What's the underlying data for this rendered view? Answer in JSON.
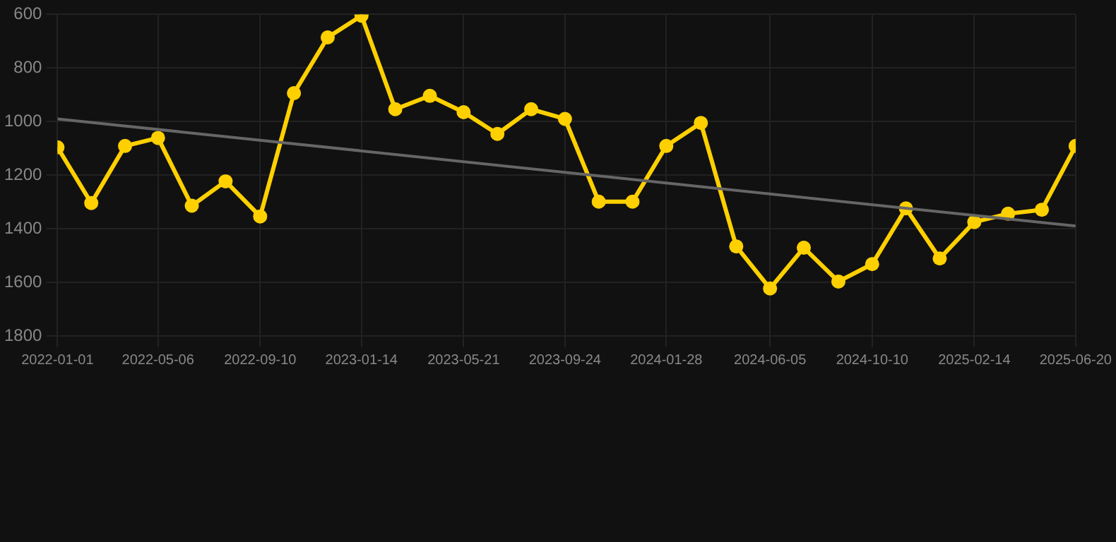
{
  "chart_data": {
    "type": "line",
    "x": [
      "2022-01-01",
      "2022-02-12",
      "2022-03-26",
      "2022-05-06",
      "2022-06-17",
      "2022-07-29",
      "2022-09-10",
      "2022-10-22",
      "2022-12-03",
      "2023-01-14",
      "2023-02-25",
      "2023-04-09",
      "2023-05-21",
      "2023-07-02",
      "2023-08-13",
      "2023-09-24",
      "2023-11-05",
      "2023-12-17",
      "2024-01-28",
      "2024-03-11",
      "2024-04-24",
      "2024-06-05",
      "2024-07-17",
      "2024-08-29",
      "2024-10-10",
      "2024-11-21",
      "2025-01-02",
      "2025-02-14",
      "2025-03-28",
      "2025-05-09",
      "2025-06-20"
    ],
    "series": [
      {
        "color": "#ffd000",
        "marker": "circle",
        "values": [
          1096,
          1304,
          1091,
          1061,
          1314,
          1223,
          1354,
          894,
          686,
          605,
          954,
          904,
          965,
          1046,
          954,
          990,
          1299,
          1299,
          1091,
          1005,
          1466,
          1623,
          1471,
          1597,
          1532,
          1324,
          1511,
          1375,
          1344,
          1329,
          1091
        ]
      },
      {
        "color": "#666666",
        "marker": "none",
        "x": [
          "2022-01-01",
          "2025-06-20"
        ],
        "values": [
          990,
          1390
        ]
      }
    ],
    "ylim": [
      1800,
      600
    ],
    "yticks": [
      600,
      800,
      1000,
      1200,
      1400,
      1600,
      1800
    ],
    "xlim": [
      "2022-01-01",
      "2025-06-20"
    ],
    "xticks": [
      "2022-01-01",
      "2022-05-06",
      "2022-09-10",
      "2023-01-14",
      "2023-05-21",
      "2023-09-24",
      "2024-01-28",
      "2024-06-05",
      "2024-10-10",
      "2025-02-14",
      "2025-06-20"
    ],
    "grid": true,
    "legend": false
  }
}
